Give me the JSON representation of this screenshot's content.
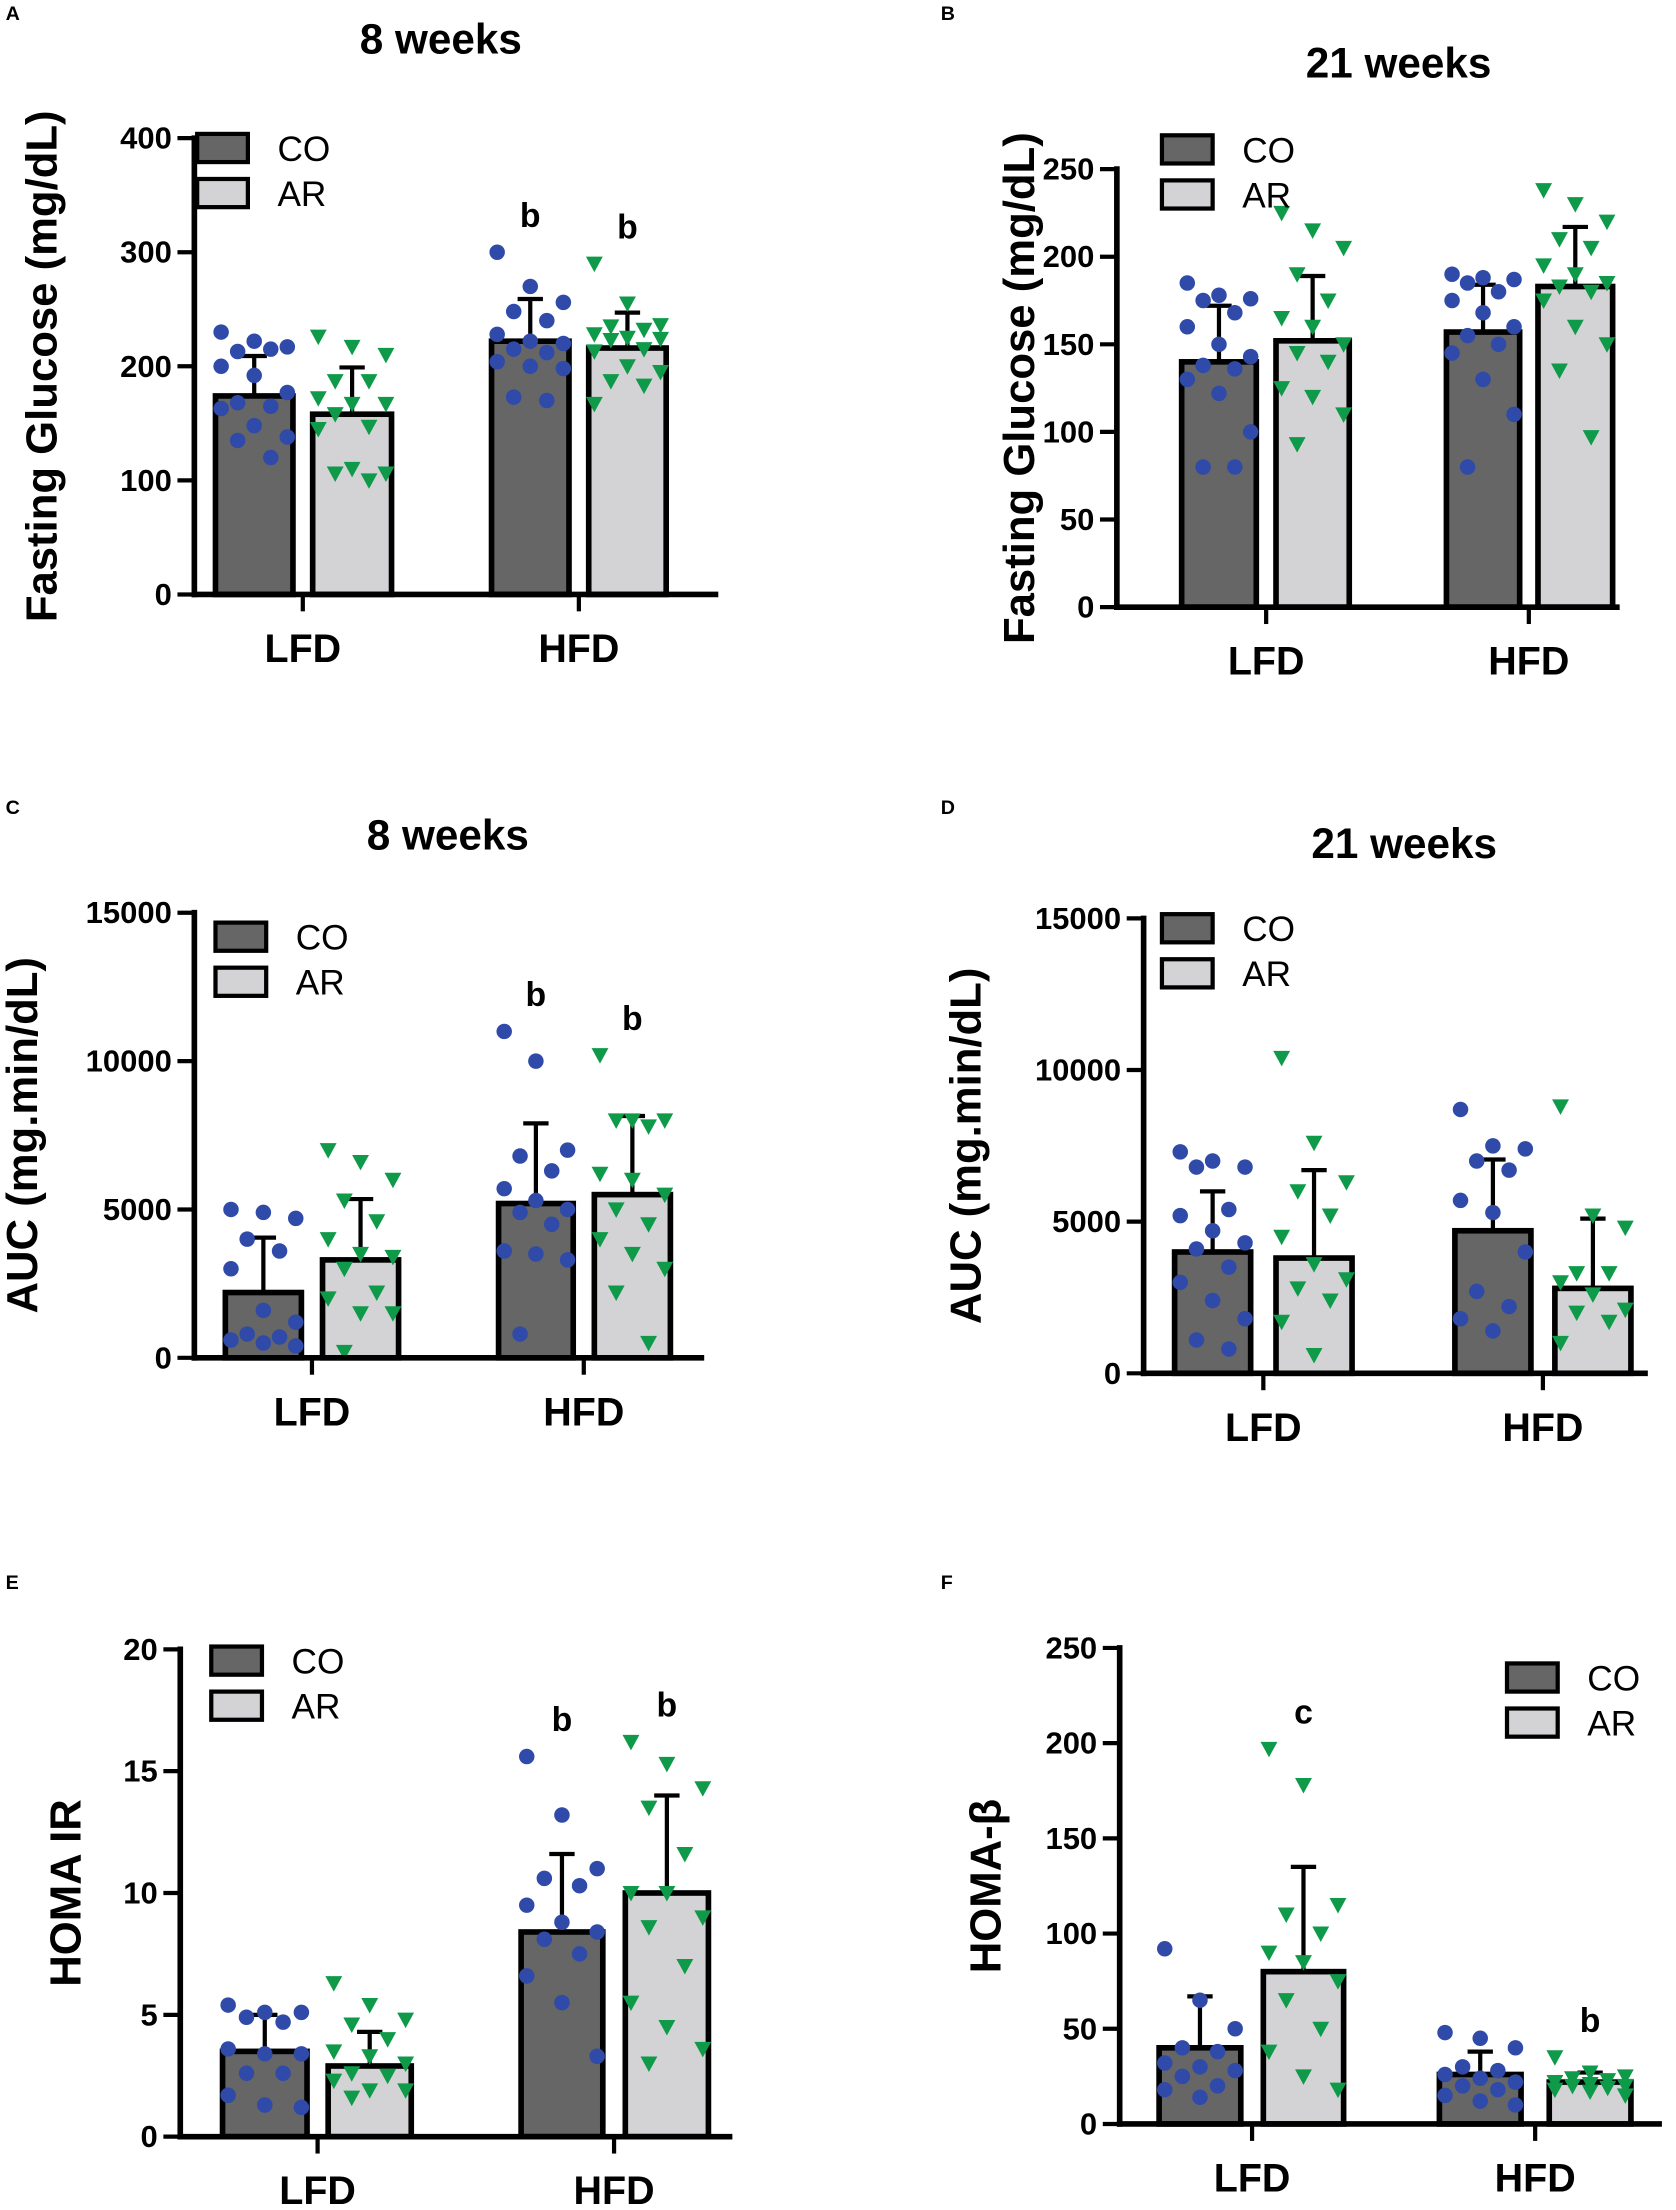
{
  "colors": {
    "co_bar": "#666666",
    "ar_bar": "#d3d3d5",
    "co_point": "#2f4aa8",
    "ar_point": "#0f9a4a",
    "axis": "#000000"
  },
  "legend": [
    "CO",
    "AR"
  ],
  "chart_data": [
    {
      "type": "bar",
      "panel": "A",
      "title": "8 weeks",
      "ylabel": "Fasting Glucose (mg/dL)",
      "ylim": [
        0,
        400
      ],
      "yticks": [
        0,
        100,
        200,
        300,
        400
      ],
      "categories": [
        "LFD",
        "HFD"
      ],
      "legend_placement": "top-left",
      "series": [
        {
          "name": "CO",
          "values": [
            174,
            222
          ],
          "sd": [
            35,
            37
          ],
          "letters": [
            "",
            "b"
          ],
          "points": [
            [
              230,
              222,
              217,
              213,
              215,
              200,
              192,
              177,
              168,
              165,
              163,
              148,
              138,
              135,
              120
            ],
            [
              300,
              270,
              256,
              248,
              240,
              228,
              222,
              220,
              215,
              212,
              204,
              200,
              198,
              173,
              170
            ]
          ]
        },
        {
          "name": "AR",
          "values": [
            158,
            216
          ],
          "sd": [
            41,
            31
          ],
          "letters": [
            "",
            "b"
          ],
          "points": [
            [
              226,
              217,
              210,
              187,
              187,
              172,
              167,
              167,
              158,
              147,
              145,
              110,
              106,
              106,
              100
            ],
            [
              290,
              255,
              236,
              235,
              232,
              228,
              225,
              224,
              223,
              215,
              213,
              200,
              195,
              187,
              183,
              167
            ]
          ]
        }
      ]
    },
    {
      "type": "bar",
      "panel": "B",
      "title": "21 weeks",
      "ylabel": "Fasting Glucose (mg/dL)",
      "ylim": [
        0,
        250
      ],
      "yticks": [
        0,
        50,
        100,
        150,
        200,
        250
      ],
      "categories": [
        "LFD",
        "HFD"
      ],
      "legend_placement": "top-left",
      "series": [
        {
          "name": "CO",
          "values": [
            140,
            157
          ],
          "sd": [
            32,
            27
          ],
          "letters": [
            "",
            ""
          ],
          "points": [
            [
              185,
              178,
              176,
              175,
              168,
              160,
              150,
              143,
              138,
              136,
              130,
              122,
              100,
              80,
              80
            ],
            [
              190,
              188,
              187,
              185,
              180,
              175,
              168,
              160,
              155,
              150,
              145,
              130,
              110,
              80
            ]
          ]
        },
        {
          "name": "AR",
          "values": [
            152,
            183
          ],
          "sd": [
            37,
            34
          ],
          "letters": [
            "",
            ""
          ],
          "points": [
            [
              225,
              215,
              205,
              190,
              175,
              165,
              160,
              150,
              145,
              140,
              125,
              120,
              110,
              93
            ],
            [
              238,
              230,
              220,
              210,
              205,
              195,
              190,
              185,
              183,
              180,
              175,
              160,
              150,
              135,
              97
            ]
          ]
        }
      ]
    },
    {
      "type": "bar",
      "panel": "C",
      "title": "8 weeks",
      "ylabel": "AUC (mg.min/dL)",
      "ylim": [
        0,
        15000
      ],
      "yticks": [
        0,
        5000,
        10000,
        15000
      ],
      "categories": [
        "LFD",
        "HFD"
      ],
      "legend_placement": "top-left",
      "series": [
        {
          "name": "CO",
          "values": [
            2200,
            5200
          ],
          "sd": [
            1850,
            2700
          ],
          "letters": [
            "",
            "b"
          ],
          "points": [
            [
              5000,
              4900,
              4700,
              4000,
              3600,
              3000,
              1600,
              1200,
              800,
              700,
              600,
              500,
              400
            ],
            [
              11000,
              10000,
              7000,
              6800,
              6300,
              5700,
              5300,
              5000,
              4900,
              4500,
              3600,
              3500,
              3300,
              800
            ]
          ]
        },
        {
          "name": "AR",
          "values": [
            3300,
            5500
          ],
          "sd": [
            2050,
            2650
          ],
          "letters": [
            "",
            "b"
          ],
          "points": [
            [
              7000,
              6600,
              6000,
              5300,
              4600,
              4000,
              3500,
              3400,
              3000,
              2200,
              2000,
              1500,
              1500,
              200
            ],
            [
              10200,
              8000,
              8000,
              8000,
              7800,
              6200,
              6000,
              5500,
              5000,
              4500,
              4000,
              3500,
              3000,
              2200,
              500
            ]
          ]
        }
      ]
    },
    {
      "type": "bar",
      "panel": "D",
      "title": "21 weeks",
      "ylabel": "AUC (mg.min/dL)",
      "ylim": [
        0,
        15000
      ],
      "yticks": [
        0,
        5000,
        10000,
        15000
      ],
      "categories": [
        "LFD",
        "HFD"
      ],
      "legend_placement": "top-left",
      "series": [
        {
          "name": "CO",
          "values": [
            4000,
            4700
          ],
          "sd": [
            2000,
            2350
          ],
          "letters": [
            "",
            ""
          ],
          "points": [
            [
              7300,
              7000,
              6800,
              6800,
              5400,
              5200,
              4700,
              4300,
              4100,
              3500,
              3000,
              2400,
              1800,
              1100,
              800
            ],
            [
              8700,
              7500,
              7400,
              7000,
              6700,
              5700,
              5300,
              4000,
              2700,
              2200,
              1800,
              1400
            ]
          ]
        },
        {
          "name": "AR",
          "values": [
            3800,
            2800
          ],
          "sd": [
            2900,
            2300
          ],
          "letters": [
            "",
            ""
          ],
          "points": [
            [
              10400,
              7600,
              6300,
              6000,
              5200,
              4500,
              3600,
              3100,
              2800,
              2400,
              1700,
              600
            ],
            [
              8800,
              5200,
              4800,
              3300,
              3300,
              3000,
              2600,
              2100,
              2000,
              1700,
              1000
            ]
          ]
        }
      ]
    },
    {
      "type": "bar",
      "panel": "E",
      "title": "",
      "ylabel": "HOMA IR",
      "ylim": [
        0,
        20
      ],
      "yticks": [
        0,
        5,
        10,
        15,
        20
      ],
      "categories": [
        "LFD",
        "HFD"
      ],
      "legend_placement": "top-left",
      "series": [
        {
          "name": "CO",
          "values": [
            3.5,
            8.4
          ],
          "sd": [
            1.5,
            3.2
          ],
          "letters": [
            "",
            "b"
          ],
          "points": [
            [
              5.4,
              5.1,
              5.1,
              4.9,
              4.7,
              3.6,
              3.4,
              3.4,
              2.6,
              2.6,
              1.7,
              1.3,
              1.2
            ],
            [
              15.6,
              13.2,
              11.0,
              10.6,
              10.3,
              9.5,
              8.8,
              8.4,
              8.1,
              7.5,
              6.6,
              5.5,
              3.3
            ]
          ]
        },
        {
          "name": "AR",
          "values": [
            2.9,
            10.0
          ],
          "sd": [
            1.4,
            4.0
          ],
          "letters": [
            "",
            "b"
          ],
          "points": [
            [
              6.3,
              5.4,
              4.8,
              4.6,
              4.0,
              3.5,
              3.3,
              3.0,
              2.6,
              2.5,
              2.3,
              1.9,
              1.9,
              1.6
            ],
            [
              16.2,
              15.3,
              14.3,
              13.5,
              11.6,
              10.0,
              10.0,
              9.0,
              8.6,
              7.0,
              5.5,
              4.5,
              3.6,
              3.0
            ]
          ]
        }
      ]
    },
    {
      "type": "bar",
      "panel": "F",
      "title": "",
      "ylabel": "HOMA-β",
      "ylim": [
        0,
        250
      ],
      "yticks": [
        0,
        50,
        100,
        150,
        200,
        250
      ],
      "categories": [
        "LFD",
        "HFD"
      ],
      "legend_placement": "top-right",
      "series": [
        {
          "name": "CO",
          "values": [
            40,
            26
          ],
          "sd": [
            27,
            12
          ],
          "letters": [
            "",
            ""
          ],
          "points": [
            [
              92,
              65,
              50,
              40,
              38,
              32,
              30,
              28,
              25,
              20,
              18,
              14
            ],
            [
              48,
              45,
              40,
              30,
              28,
              26,
              24,
              22,
              20,
              18,
              15,
              12,
              10
            ]
          ]
        },
        {
          "name": "AR",
          "values": [
            80,
            22
          ],
          "sd": [
            55,
            5
          ],
          "letters": [
            "c",
            "b"
          ],
          "points": [
            [
              197,
              178,
              115,
              110,
              100,
              90,
              85,
              75,
              65,
              50,
              38,
              25,
              18
            ],
            [
              35,
              27,
              25,
              24,
              23,
              22,
              21,
              20,
              20,
              19,
              18,
              17,
              15
            ]
          ]
        }
      ]
    }
  ]
}
